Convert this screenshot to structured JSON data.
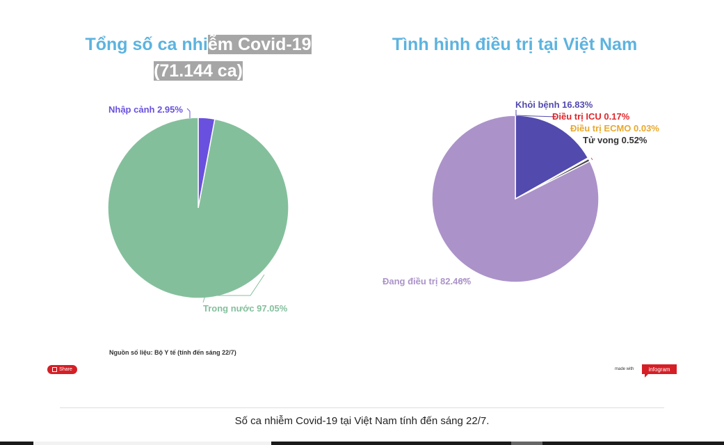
{
  "chart_data": [
    {
      "type": "pie",
      "title_plain": "Tổng số ca nhi",
      "title_highlight_1": "ễm Covid-19",
      "title_highlight_2": "(71.144 ca)",
      "slices": [
        {
          "label": "Nhập cảnh 2.95%",
          "value": 2.95,
          "color": "#6a50de"
        },
        {
          "label": "Trong nước 97.05%",
          "value": 97.05,
          "color": "#84bf9c"
        }
      ]
    },
    {
      "type": "pie",
      "title": "Tình hình điều trị tại Việt Nam",
      "slices": [
        {
          "label": "Khỏi bệnh 16.83%",
          "value": 16.83,
          "color": "#524aad"
        },
        {
          "label": "Điều trị ICU 0.17%",
          "value": 0.17,
          "color": "#e8474b"
        },
        {
          "label": "Điều trị ECMO 0.03%",
          "value": 0.03,
          "color": "#e9a82c"
        },
        {
          "label": "Tử vong 0.52%",
          "value": 0.52,
          "color": "#444444"
        },
        {
          "label": "Đang điều trị 82.46%",
          "value": 82.46,
          "color": "#ab93c9"
        }
      ]
    }
  ],
  "label_colors": {
    "nhap_canh": "#6a50de",
    "trong_nuoc": "#84bf9c",
    "khoi_benh": "#524aad",
    "icu": "#e0262b",
    "ecmo": "#e9a82c",
    "tu_vong": "#333333",
    "dang_dieu_tri": "#ab93c9"
  },
  "source_note": "Nguồn số liệu: Bộ Y tế (tính đến sáng 22/7)",
  "share_label": "Share",
  "made_with": "made with",
  "brand": "infogram",
  "caption": "Số ca nhiễm Covid-19 tại Việt Nam tính đến sáng 22/7."
}
